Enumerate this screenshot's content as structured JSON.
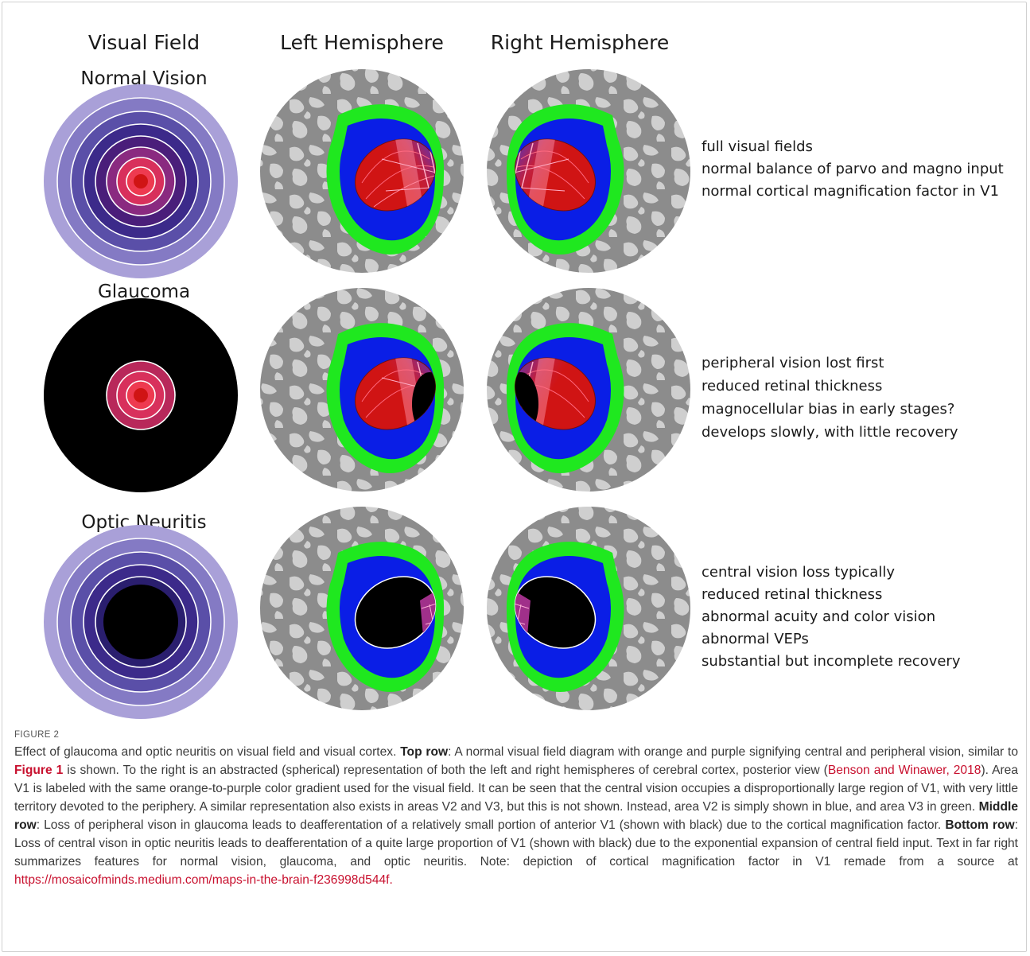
{
  "figure": {
    "columns": {
      "visual_field": "Visual Field",
      "left_hemisphere": "Left Hemisphere",
      "right_hemisphere": "Right Hemisphere"
    },
    "rows": [
      {
        "title": "Normal Vision",
        "features": [
          "full visual fields",
          "normal balance of parvo and magno input",
          "normal cortical magnification factor in V1"
        ]
      },
      {
        "title": "Glaucoma",
        "features": [
          "peripheral vision lost first",
          "reduced retinal thickness",
          "magnocellular bias in early stages?",
          "develops slowly, with little recovery"
        ]
      },
      {
        "title": "Optic Neuritis",
        "features": [
          "central vision loss typically",
          "reduced retinal thickness",
          "abnormal acuity and color vision",
          "abnormal VEPs",
          "substantial but incomplete recovery"
        ]
      }
    ],
    "colors": {
      "v1_central": "#d01414",
      "v1_peripheral": "#6a2a9a",
      "v2": "#0a1ee6",
      "v3": "#1fe81f",
      "cortex_dark": "#8c8c8c",
      "cortex_light": "#cfcfcf",
      "deafferented": "#000000"
    }
  },
  "caption": {
    "figure_number": "FIGURE 2",
    "s1": "Effect of glaucoma and optic neuritis on visual field and visual cortex. ",
    "top_row_label": "Top row",
    "s2": ": A normal visual field diagram with orange and purple signifying central and peripheral vision, similar to ",
    "figure_ref": "Figure 1",
    "s3": " is shown. To the right is an abstracted (spherical) representation of both the left and right hemispheres of cerebral cortex, posterior view (",
    "citation": "Benson and Winawer, 2018",
    "s4": "). Area V1 is labeled with the same orange-to-purple color gradient used for the visual field. It can be seen that the central vision occupies a disproportionally large region of V1, with very little territory devoted to the periphery. A similar representation also exists in areas V2 and V3, but this is not shown. Instead, area V2 is simply shown in blue, and area V3 in green. ",
    "middle_row_label": "Middle row",
    "s5": ": Loss of peripheral vison in glaucoma leads to deafferentation of a relatively small portion of anterior V1 (shown with black) due to the cortical magnification factor. ",
    "bottom_row_label": "Bottom row",
    "s6": ": Loss of central vison in optic neuritis leads to deafferentation of a quite large proportion of V1 (shown with black) due to the exponential expansion of central field input. Text in far right summarizes features for normal vision, glaucoma, and optic neuritis. Note: depiction of cortical magnification factor in V1 remade from a source at ",
    "url": "https://mosaicofminds.medium.com/maps-in-the-brain-f236998d544f",
    "s7": "."
  }
}
